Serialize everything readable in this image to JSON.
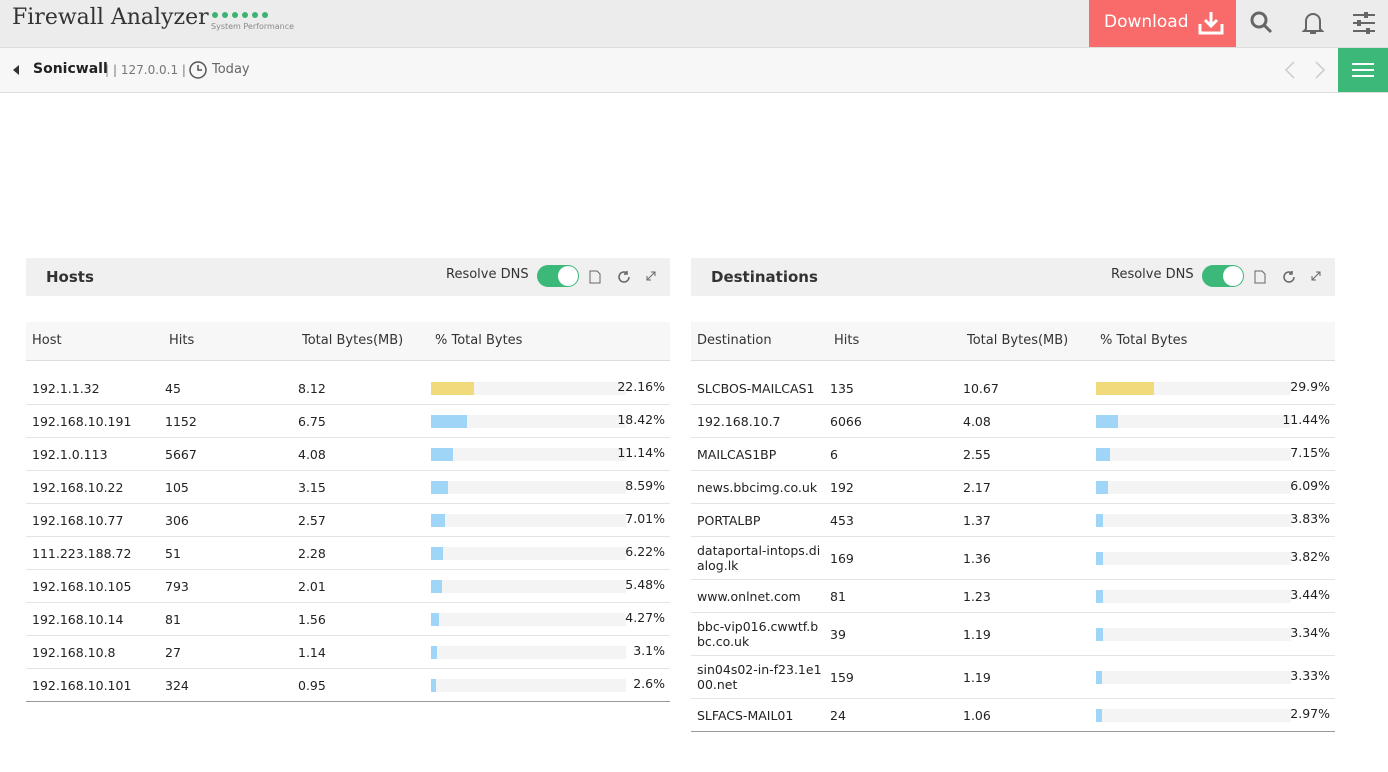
{
  "header": {
    "title": "Firewall Analyzer",
    "subtitle": "System Performance",
    "download": "Download"
  },
  "breadcrumb": {
    "device": "Sonicwall",
    "separator": "|",
    "ip": "| 127.0.0.1 |",
    "period": "Today"
  },
  "panels": [
    {
      "title": "Hosts",
      "toggle": "Resolve DNS",
      "columns": [
        "Host",
        "Hits",
        "Total Bytes(MB)",
        "% Total Bytes"
      ],
      "rows": [
        [
          "192.1.1.32",
          45,
          8.12,
          22.16,
          "22.16%"
        ],
        [
          "192.168.10.191",
          1152,
          6.75,
          18.42,
          "18.42%"
        ],
        [
          "192.1.0.113",
          5667,
          4.08,
          11.14,
          "11.14%"
        ],
        [
          "192.168.10.22",
          105,
          3.15,
          8.59,
          "8.59%"
        ],
        [
          "192.168.10.77",
          306,
          2.57,
          7.01,
          "7.01%"
        ],
        [
          "111.223.188.72",
          51,
          2.28,
          6.22,
          "6.22%"
        ],
        [
          "192.168.10.105",
          793,
          2.01,
          5.48,
          "5.48%"
        ],
        [
          "192.168.10.14",
          81,
          1.56,
          4.27,
          "4.27%"
        ],
        [
          "192.168.10.8",
          27,
          1.14,
          3.1,
          "3.1%"
        ],
        [
          "192.168.10.101",
          324,
          0.95,
          2.6,
          "2.6%"
        ]
      ]
    },
    {
      "title": "Destinations",
      "toggle": "Resolve DNS",
      "columns": [
        "Destination",
        "Hits",
        "Total Bytes(MB)",
        "% Total Bytes"
      ],
      "rows": [
        [
          "SLCBOS-MAILCAS1",
          135,
          10.67,
          29.9,
          "29.9%"
        ],
        [
          "192.168.10.7",
          6066,
          4.08,
          11.44,
          "11.44%"
        ],
        [
          "MAILCAS1BP",
          6,
          2.55,
          7.15,
          "7.15%"
        ],
        [
          "news.bbcimg.co.uk",
          192,
          2.17,
          6.09,
          "6.09%"
        ],
        [
          "PORTALBP",
          453,
          1.37,
          3.83,
          "3.83%"
        ],
        [
          "dataportal-intops.dialog.lk",
          169,
          1.36,
          3.82,
          "3.82%"
        ],
        [
          "www.onlnet.com",
          81,
          1.23,
          3.44,
          "3.44%"
        ],
        [
          "bbc-vip016.cwwtf.bbc.co.uk",
          39,
          1.19,
          3.34,
          "3.34%"
        ],
        [
          "sin04s02-in-f23.1e100.net",
          159,
          1.19,
          3.33,
          "3.33%"
        ],
        [
          "SLFACS-MAIL01",
          24,
          1.06,
          2.97,
          "2.97%"
        ]
      ]
    }
  ]
}
